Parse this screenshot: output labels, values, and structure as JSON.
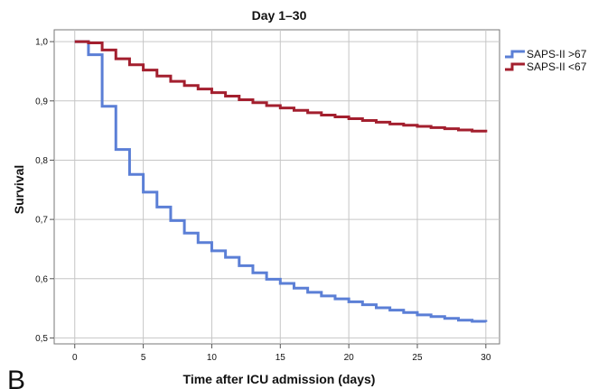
{
  "panel_label": "B",
  "chart_data": {
    "type": "line",
    "title": "Day 1–30",
    "xlabel": "Time after ICU admission (days)",
    "ylabel": "Survival",
    "xlim": [
      -1.5,
      31
    ],
    "ylim": [
      0.49,
      1.02
    ],
    "x_ticks": [
      0,
      5,
      10,
      15,
      20,
      25,
      30
    ],
    "x_tick_labels": [
      "0",
      "5",
      "10",
      "15",
      "20",
      "25",
      "30"
    ],
    "y_ticks": [
      0.5,
      0.6,
      0.7,
      0.8,
      0.9,
      1.0
    ],
    "y_tick_labels": [
      "0,5",
      "0,6",
      "0,7",
      "0,8",
      "0,9",
      "1,0"
    ],
    "grid": true,
    "legend_position": "top-right",
    "step": true,
    "series": [
      {
        "name": "SAPS-II >67",
        "color": "#5b7fd6",
        "x": [
          0,
          1,
          2,
          3,
          4,
          5,
          6,
          7,
          8,
          9,
          10,
          11,
          12,
          13,
          14,
          15,
          16,
          17,
          18,
          19,
          20,
          21,
          22,
          23,
          24,
          25,
          26,
          27,
          28,
          29,
          30
        ],
        "y": [
          1.0,
          0.978,
          0.891,
          0.818,
          0.776,
          0.746,
          0.721,
          0.698,
          0.677,
          0.661,
          0.647,
          0.636,
          0.622,
          0.61,
          0.599,
          0.592,
          0.584,
          0.577,
          0.571,
          0.566,
          0.561,
          0.556,
          0.551,
          0.547,
          0.543,
          0.539,
          0.536,
          0.533,
          0.53,
          0.528,
          0.527
        ]
      },
      {
        "name": "SAPS-II <67",
        "color": "#a31f2e",
        "x": [
          0,
          1,
          2,
          3,
          4,
          5,
          6,
          7,
          8,
          9,
          10,
          11,
          12,
          13,
          14,
          15,
          16,
          17,
          18,
          19,
          20,
          21,
          22,
          23,
          24,
          25,
          26,
          27,
          28,
          29,
          30
        ],
        "y": [
          1.0,
          0.998,
          0.986,
          0.971,
          0.961,
          0.952,
          0.942,
          0.933,
          0.926,
          0.92,
          0.914,
          0.908,
          0.902,
          0.897,
          0.892,
          0.888,
          0.884,
          0.88,
          0.876,
          0.873,
          0.87,
          0.867,
          0.864,
          0.861,
          0.859,
          0.857,
          0.855,
          0.853,
          0.851,
          0.849,
          0.847
        ]
      }
    ]
  }
}
